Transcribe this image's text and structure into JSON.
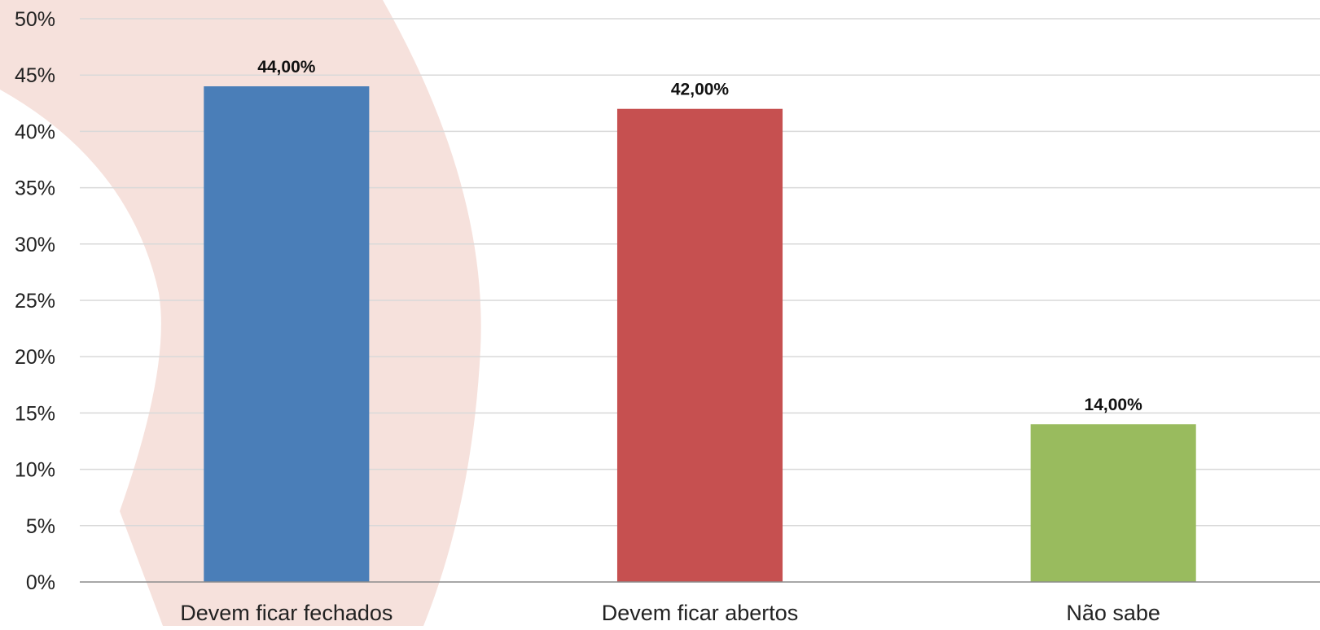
{
  "chart_data": {
    "type": "bar",
    "categories": [
      "Devem ficar fechados",
      "Devem ficar abertos",
      "Não sabe"
    ],
    "values": [
      44,
      42,
      14
    ],
    "data_labels": [
      "44,00%",
      "42,00%",
      "14,00%"
    ],
    "colors": [
      "#4a7eb8",
      "#c65050",
      "#99bb5e"
    ],
    "ylim": [
      0,
      50
    ],
    "yticks": [
      0,
      5,
      10,
      15,
      20,
      25,
      30,
      35,
      40,
      45,
      50
    ],
    "ytick_labels": [
      "0%",
      "5%",
      "10%",
      "15%",
      "20%",
      "25%",
      "30%",
      "35%",
      "40%",
      "45%",
      "50%"
    ],
    "grid": true,
    "gridline_color": "#d9d9d9",
    "axis_color": "#8c8c8c",
    "background_shape_color": "#f6e1dc",
    "title": "",
    "xlabel": "",
    "ylabel": ""
  }
}
